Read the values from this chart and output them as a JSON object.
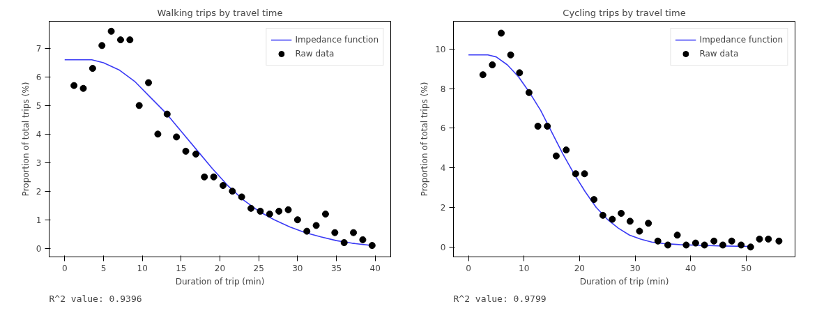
{
  "chart_data": [
    {
      "type": "scatter",
      "title": "Walking trips by travel time",
      "xlabel": "Duration of trip (min)",
      "ylabel": "Proportion of total trips (%)",
      "xlim": [
        -2,
        42
      ],
      "ylim": [
        -0.3,
        7.95
      ],
      "xticks": [
        0,
        5,
        10,
        15,
        20,
        25,
        30,
        35,
        40
      ],
      "yticks": [
        0,
        1,
        2,
        3,
        4,
        5,
        6,
        7
      ],
      "grid": false,
      "legend": "top right",
      "annotations": [
        "R^2 value: 0.9396"
      ],
      "series": [
        {
          "name": "Impedance function",
          "type": "line",
          "color": "#3b3bf5",
          "line_style": "solid",
          "marker": "none",
          "x": [
            0,
            3.5,
            5,
            7,
            9,
            11,
            13,
            15,
            17,
            19,
            21,
            23,
            25,
            27,
            29,
            31,
            33,
            35,
            37,
            39.6
          ],
          "values": [
            6.6,
            6.6,
            6.5,
            6.25,
            5.85,
            5.3,
            4.75,
            4.1,
            3.45,
            2.8,
            2.2,
            1.7,
            1.3,
            1.0,
            0.75,
            0.55,
            0.4,
            0.27,
            0.18,
            0.1
          ]
        },
        {
          "name": "Raw data",
          "color": "#000000",
          "marker": "circle",
          "x": [
            1.2,
            2.4,
            3.6,
            4.8,
            6,
            7.2,
            8.4,
            9.6,
            10.8,
            12,
            13.2,
            14.4,
            15.6,
            16.9,
            18,
            19.2,
            20.4,
            21.6,
            22.8,
            24,
            25.2,
            26.4,
            27.6,
            28.8,
            30,
            31.2,
            32.4,
            33.6,
            34.8,
            36,
            37.2,
            38.4,
            39.6
          ],
          "values": [
            5.7,
            5.6,
            6.3,
            7.1,
            7.6,
            7.3,
            7.3,
            5.0,
            5.8,
            4.0,
            4.7,
            3.9,
            3.4,
            3.3,
            2.5,
            2.5,
            2.2,
            2.0,
            1.8,
            1.4,
            1.3,
            1.2,
            1.3,
            1.35,
            1.0,
            0.6,
            0.8,
            1.2,
            0.55,
            0.2,
            0.55,
            0.3,
            0.1
          ]
        }
      ]
    },
    {
      "type": "scatter",
      "title": "Cycling trips by travel time",
      "xlabel": "Duration of trip (min)",
      "ylabel": "Proportion of total trips (%)",
      "xlim": [
        -2.7,
        58.8
      ],
      "ylim": [
        -0.5,
        11.4
      ],
      "xticks": [
        0,
        10,
        20,
        30,
        40,
        50
      ],
      "yticks": [
        0,
        2,
        4,
        6,
        8,
        10
      ],
      "grid": false,
      "legend": "top right",
      "annotations": [
        "R^2 value: 0.9799"
      ],
      "series": [
        {
          "name": "Impedance function",
          "type": "line",
          "color": "#3b3bf5",
          "line_style": "solid",
          "marker": "none",
          "x": [
            0,
            3.5,
            5,
            7,
            9,
            11,
            13,
            15,
            17,
            19,
            21,
            23,
            25,
            27,
            29,
            31,
            33,
            35,
            38,
            42,
            46,
            50.8
          ],
          "values": [
            9.7,
            9.7,
            9.6,
            9.2,
            8.6,
            7.8,
            6.9,
            5.8,
            4.7,
            3.7,
            2.8,
            2.0,
            1.4,
            0.95,
            0.6,
            0.4,
            0.25,
            0.18,
            0.12,
            0.08,
            0.05,
            0.03
          ]
        },
        {
          "name": "Raw data",
          "color": "#000000",
          "marker": "circle",
          "x": [
            2.6,
            4.3,
            5.9,
            7.6,
            9.2,
            10.9,
            12.5,
            14.2,
            15.8,
            17.6,
            19.3,
            20.9,
            22.6,
            24.2,
            25.9,
            27.5,
            29.1,
            30.8,
            32.4,
            34.1,
            35.9,
            37.6,
            39.2,
            40.9,
            42.5,
            44.2,
            45.8,
            47.4,
            49.1,
            50.8,
            52.4,
            54,
            55.9
          ],
          "values": [
            8.7,
            9.2,
            10.8,
            9.7,
            8.8,
            7.8,
            6.1,
            6.1,
            4.6,
            4.9,
            3.7,
            3.7,
            2.4,
            1.6,
            1.4,
            1.7,
            1.3,
            0.8,
            1.2,
            0.3,
            0.1,
            0.6,
            0.1,
            0.2,
            0.1,
            0.3,
            0.1,
            0.3,
            0.1,
            0.0,
            0.4,
            0.4,
            0.3
          ]
        }
      ]
    }
  ]
}
